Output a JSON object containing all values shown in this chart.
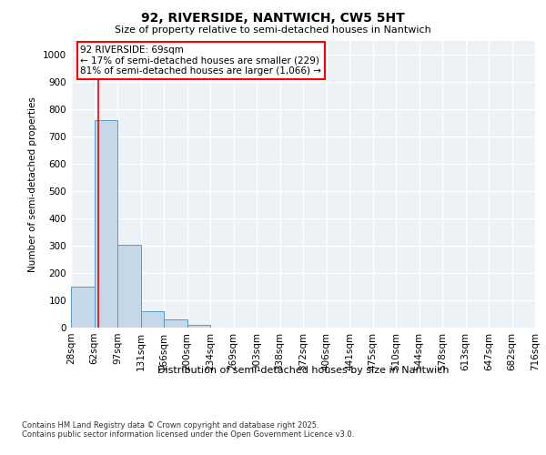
{
  "title": "92, RIVERSIDE, NANTWICH, CW5 5HT",
  "subtitle": "Size of property relative to semi-detached houses in Nantwich",
  "xlabel": "Distribution of semi-detached houses by size in Nantwich",
  "ylabel": "Number of semi-detached properties",
  "bins": [
    "28sqm",
    "62sqm",
    "97sqm",
    "131sqm",
    "166sqm",
    "200sqm",
    "234sqm",
    "269sqm",
    "303sqm",
    "338sqm",
    "372sqm",
    "406sqm",
    "441sqm",
    "475sqm",
    "510sqm",
    "544sqm",
    "578sqm",
    "613sqm",
    "647sqm",
    "682sqm",
    "716sqm"
  ],
  "values": [
    150,
    760,
    305,
    60,
    30,
    10,
    0,
    0,
    0,
    0,
    0,
    0,
    0,
    0,
    0,
    0,
    0,
    0,
    0,
    0
  ],
  "bar_color": "#c5d8ea",
  "bar_edge_color": "#5a9bc0",
  "red_line_x": 1.18,
  "annotation_text": "92 RIVERSIDE: 69sqm\n← 17% of semi-detached houses are smaller (229)\n81% of semi-detached houses are larger (1,066) →",
  "annotation_box_color": "white",
  "annotation_box_edge_color": "red",
  "ylim": [
    0,
    1050
  ],
  "yticks": [
    0,
    100,
    200,
    300,
    400,
    500,
    600,
    700,
    800,
    900,
    1000
  ],
  "background_color": "#edf2f7",
  "grid_color": "white",
  "footer_line1": "Contains HM Land Registry data © Crown copyright and database right 2025.",
  "footer_line2": "Contains public sector information licensed under the Open Government Licence v3.0."
}
